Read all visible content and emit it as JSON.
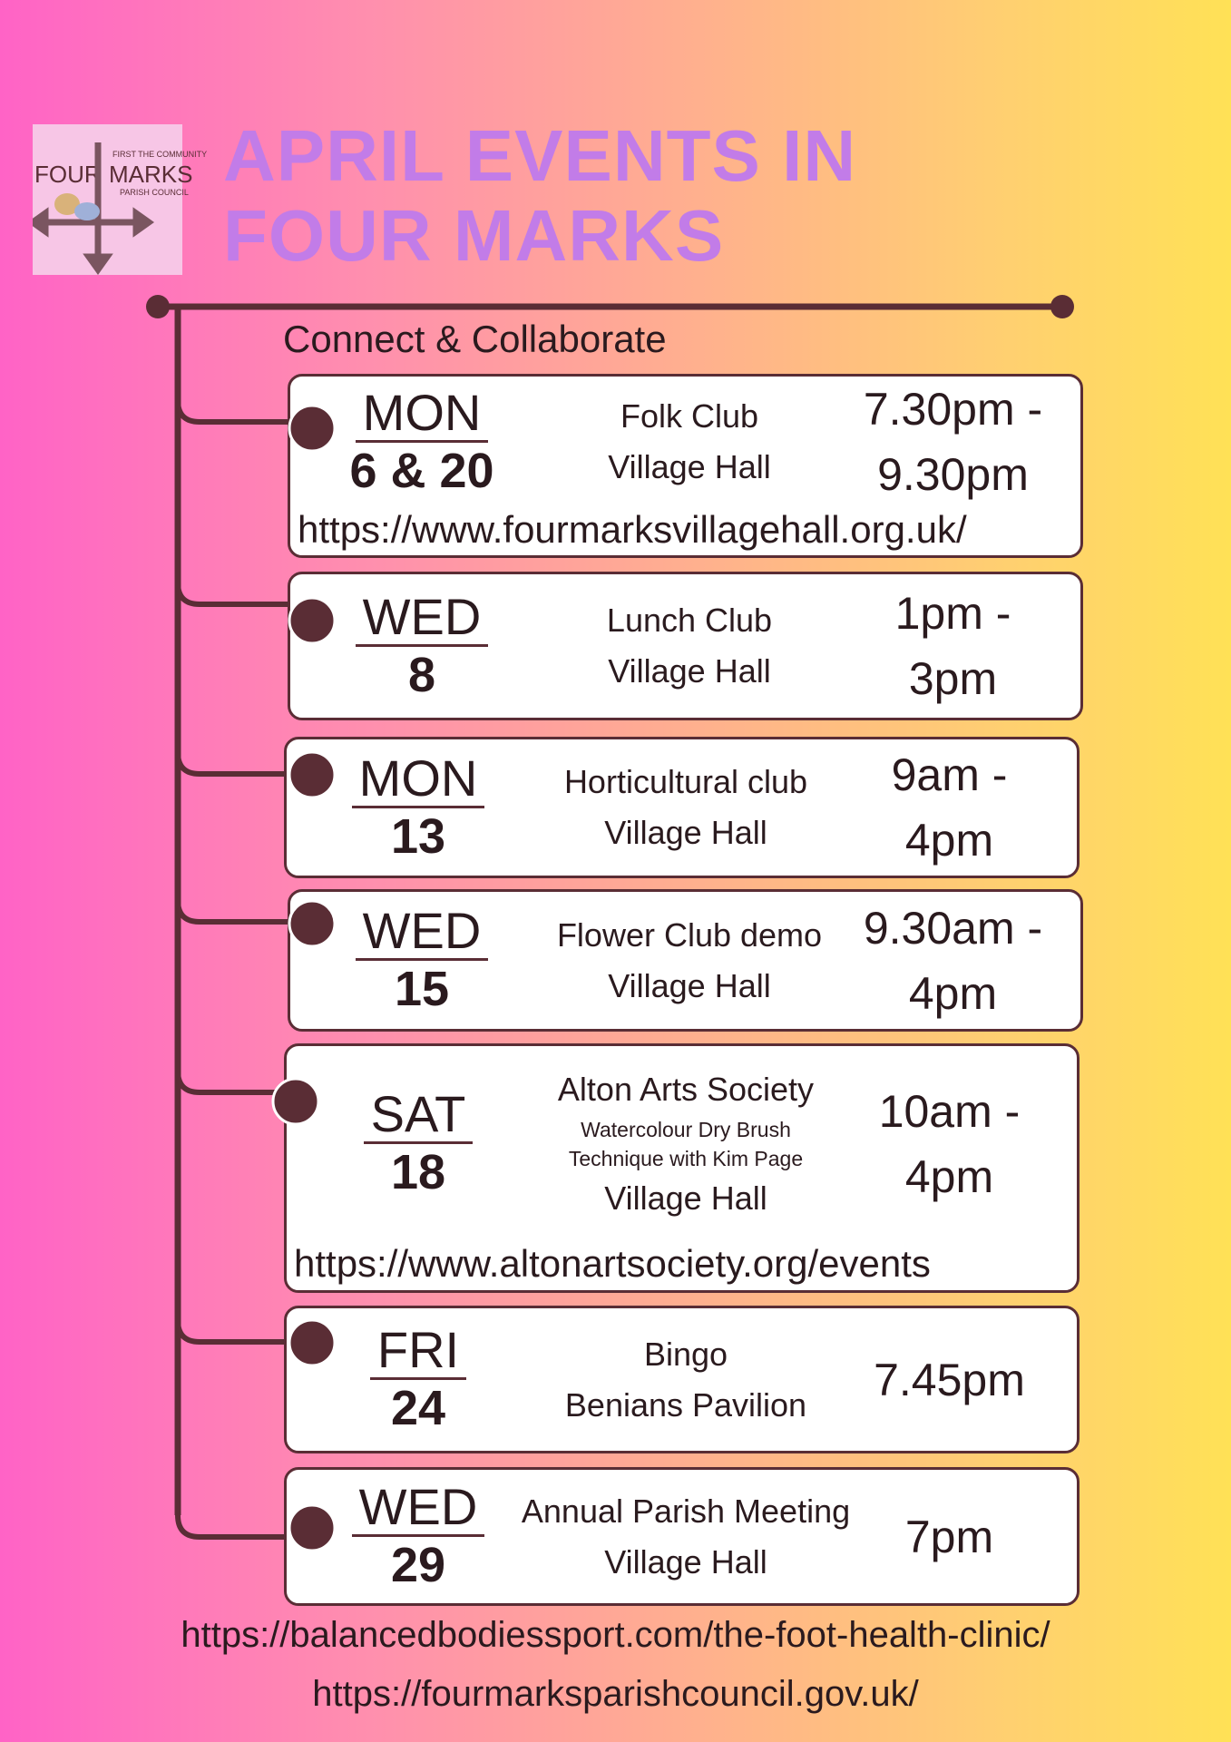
{
  "logo": {
    "lines": [
      "FIRST THE COMMUNITY",
      "FOUR",
      "MARKS",
      "PARISH COUNCIL"
    ]
  },
  "header": {
    "title": [
      "APRIL EVENTS IN",
      "FOUR MARKS"
    ],
    "subtitle": "Connect & Collaborate"
  },
  "events": [
    {
      "day": "MON",
      "date": "6 & 20",
      "name": "Folk Club",
      "venue": "Village Hall",
      "time": [
        "7.30pm -",
        "9.30pm"
      ],
      "url": "https://www.fourmarksvillagehall.org.uk/"
    },
    {
      "day": "WED",
      "date": "8",
      "name": "Lunch Club",
      "venue": "Village Hall",
      "time": [
        "1pm -",
        "3pm"
      ]
    },
    {
      "day": "MON",
      "date": "13",
      "name": "Horticultural club",
      "venue": "Village Hall",
      "time": [
        "9am -",
        "4pm"
      ]
    },
    {
      "day": "WED",
      "date": "15",
      "name": "Flower Club demo",
      "venue": "Village Hall",
      "time": [
        "9.30am -",
        "4pm"
      ]
    },
    {
      "day": "SAT",
      "date": "18",
      "name": "Alton Arts Society",
      "details": [
        "Watercolour Dry Brush",
        "Technique with Kim Page"
      ],
      "venue": "Village Hall",
      "time": [
        "10am -",
        "4pm"
      ],
      "url": "https://www.altonartsociety.org/events"
    },
    {
      "day": "FRI",
      "date": "24",
      "name": "Bingo",
      "venue": "Benians Pavilion",
      "time": [
        "7.45pm"
      ]
    },
    {
      "day": "WED",
      "date": "29",
      "name": "Annual Parish Meeting",
      "venue": "Village Hall",
      "time": [
        "7pm"
      ]
    }
  ],
  "footer": {
    "links": [
      "https://balancedbodiessport.com/the-foot-health-clinic/",
      "https://fourmarksparishcouncil.gov.uk/"
    ]
  }
}
